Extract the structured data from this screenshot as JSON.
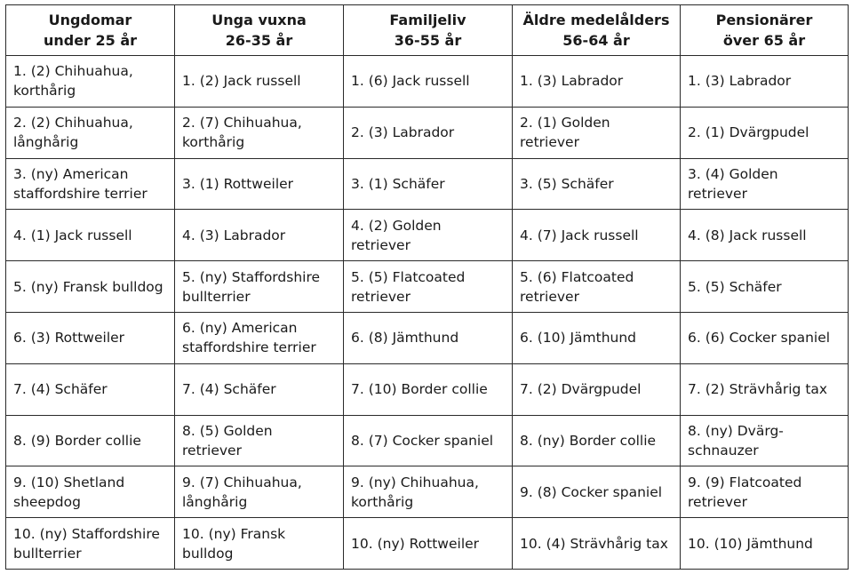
{
  "headers": [
    {
      "line1": "Ungdomar",
      "line2": "under 25 år"
    },
    {
      "line1": "Unga vuxna",
      "line2": "26-35 år"
    },
    {
      "line1": "Familjeliv",
      "line2": "36-55 år"
    },
    {
      "line1": "Äldre medelålders",
      "line2": "56-64 år"
    },
    {
      "line1": "Pensionärer",
      "line2": "över 65 år"
    }
  ],
  "rows": [
    [
      "1. (2) Chihuahua, korthårig",
      "1. (2) Jack russell",
      "1. (6) Jack russell",
      "1. (3) Labrador",
      "1. (3) Labrador"
    ],
    [
      "2. (2) Chihuahua, långhårig",
      "2. (7) Chihuahua, korthårig",
      "2. (3) Labrador",
      "2. (1) Golden retriever",
      "2. (1) Dvärgpudel"
    ],
    [
      "3. (ny) American staffordshire terrier",
      "3. (1) Rottweiler",
      "3. (1) Schäfer",
      "3. (5) Schäfer",
      "3. (4) Golden retriever"
    ],
    [
      "4. (1) Jack russell",
      "4. (3) Labrador",
      "4. (2) Golden retriever",
      "4. (7) Jack russell",
      "4. (8) Jack russell"
    ],
    [
      "5. (ny) Fransk bulldog",
      "5. (ny) Staffordshire bullterrier",
      "5. (5) Flatcoated retriever",
      "5. (6) Flatcoated retriever",
      "5. (5) Schäfer"
    ],
    [
      "6. (3) Rottweiler",
      "6. (ny) American staffordshire terrier",
      "6. (8) Jämthund",
      "6. (10) Jämthund",
      "6. (6) Cocker spaniel"
    ],
    [
      "7. (4) Schäfer",
      "7. (4) Schäfer",
      "7. (10) Border collie",
      "7. (2) Dvärgpudel",
      "7. (2) Strävhårig tax"
    ],
    [
      "8. (9) Border collie",
      "8. (5) Golden retriever",
      "8. (7) Cocker spaniel",
      "8. (ny) Border collie",
      "8. (ny) Dvärg-schnauzer"
    ],
    [
      "9. (10) Shetland sheepdog",
      "9. (7) Chihuahua, långhårig",
      "9. (ny) Chihuahua, korthårig",
      "9. (8) Cocker spaniel",
      "9. (9) Flatcoated retriever"
    ],
    [
      "10. (ny) Staffordshire bullterrier",
      "10. (ny) Fransk bulldog",
      "10. (ny) Rottweiler",
      "10. (4) Strävhårig  tax",
      "10. (10) Jämthund"
    ]
  ]
}
